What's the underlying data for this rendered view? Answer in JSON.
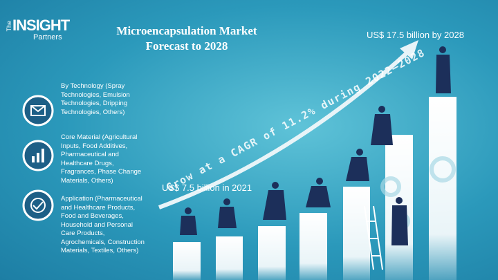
{
  "logo": {
    "prefix": "The",
    "name": "INSIGHT",
    "suffix": "Partners"
  },
  "header": {
    "title_line1": "Microencapsulation Market",
    "title_line2": "Forecast to 2028"
  },
  "callouts": {
    "forecast_2028": "US$ 17.5 billion by 2028",
    "value_2021": "US$ 7.5 billion in 2021",
    "cagr": "Grow at a CAGR of 11.2% during 2022–2028"
  },
  "segments": [
    {
      "label": "By Technology (Spray Technologies, Emulsion Technologies, Dripping Technologies, Others)"
    },
    {
      "label": "Core Material (Agricultural Inputs, Food Additives, Pharmaceutical and Healthcare Drugs, Fragrances, Phase Change Materials, Others)"
    },
    {
      "label": "Application (Pharmaceutical and Healthcare Products, Food and Beverages, Household and Personal Care Products, Agrochemicals, Construction Materials, Textiles, Others)"
    }
  ]
}
